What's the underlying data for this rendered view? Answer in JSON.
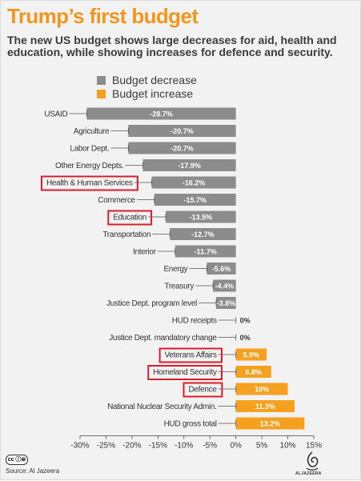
{
  "title": "Trump’s first budget",
  "subtitle": "The new US budget shows large decreases for aid, health and education, while showing increases for defence and security.",
  "legend": [
    {
      "label": "Budget decrease",
      "color": "#8c8c8c"
    },
    {
      "label": "Budget increase",
      "color": "#f5a01e"
    }
  ],
  "source": "Source: Al Jazeera",
  "cc_badge": "cc ⓘ⊜",
  "logo_text": "ALJAZEERA",
  "logo_icon": "al-jazeera-logo-icon",
  "colors": {
    "decrease": "#8c8c8c",
    "increase": "#f5a01e",
    "highlight": "#d81e2c"
  },
  "chart_data": {
    "type": "bar",
    "orientation": "horizontal",
    "categories": [
      "USAID",
      "Agriculture",
      "Labor Dept.",
      "Other Energy Depts.",
      "Health & Human Services",
      "Commerce",
      "Education",
      "Transportation",
      "Interior",
      "Energy",
      "Treasury",
      "Justice Dept. program level",
      "HUD receipts",
      "Justice Dept. mandatory change",
      "Veterans Affairs",
      "Homeland Security",
      "Defence",
      "National Nuclear Security Admin.",
      "HUD gross total"
    ],
    "values": [
      -28.7,
      -20.7,
      -20.7,
      -17.9,
      -16.2,
      -15.7,
      -13.5,
      -12.7,
      -11.7,
      -5.6,
      -4.4,
      -3.8,
      0,
      0,
      5.9,
      6.8,
      10,
      11.3,
      13.2
    ],
    "value_labels": [
      "-28.7%",
      "-20.7%",
      "-20.7%",
      "-17.9%",
      "-16.2%",
      "-15.7%",
      "-13.5%",
      "-12.7%",
      "-11.7%",
      "-5.6%",
      "-4.4%",
      "-3.8%",
      "0%",
      "0%",
      "5.9%",
      "6.8%",
      "10%",
      "11.3%",
      "13.2%"
    ],
    "highlighted": [
      "Health & Human Services",
      "Education",
      "Veterans Affairs",
      "Homeland Security",
      "Defence"
    ],
    "xlim": [
      -30,
      15
    ],
    "xticks": [
      -30,
      -25,
      -20,
      -15,
      -10,
      -5,
      0,
      5,
      10,
      15
    ],
    "xtick_labels": [
      "-30%",
      "-25%",
      "-20%",
      "-15%",
      "-10%",
      "-5%",
      "0%",
      "5%",
      "10%",
      "15%"
    ],
    "xlabel": "",
    "ylabel": "",
    "grid": false,
    "legend_position": "top"
  }
}
